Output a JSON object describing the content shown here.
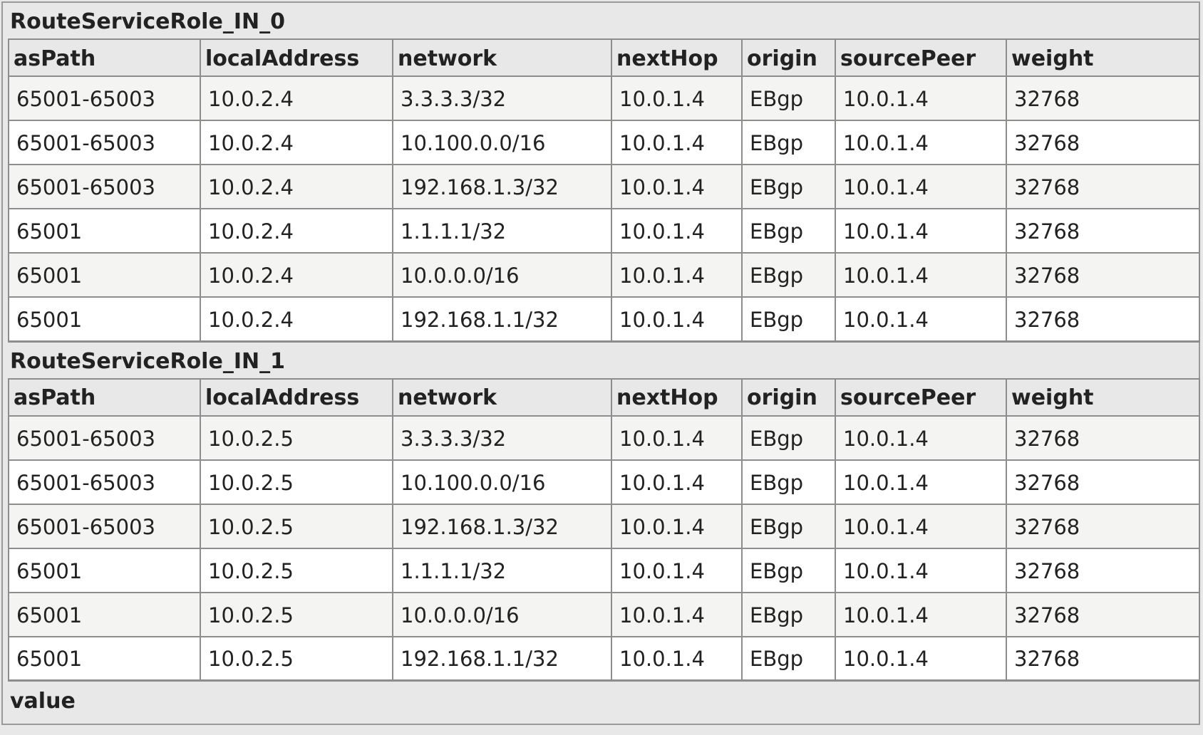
{
  "sections": [
    {
      "title": "RouteServiceRole_IN_0",
      "columns": [
        "asPath",
        "localAddress",
        "network",
        "nextHop",
        "origin",
        "sourcePeer",
        "weight"
      ],
      "rows": [
        [
          "65001-65003",
          "10.0.2.4",
          "3.3.3.3/32",
          "10.0.1.4",
          "EBgp",
          "10.0.1.4",
          "32768"
        ],
        [
          "65001-65003",
          "10.0.2.4",
          "10.100.0.0/16",
          "10.0.1.4",
          "EBgp",
          "10.0.1.4",
          "32768"
        ],
        [
          "65001-65003",
          "10.0.2.4",
          "192.168.1.3/32",
          "10.0.1.4",
          "EBgp",
          "10.0.1.4",
          "32768"
        ],
        [
          "65001",
          "10.0.2.4",
          "1.1.1.1/32",
          "10.0.1.4",
          "EBgp",
          "10.0.1.4",
          "32768"
        ],
        [
          "65001",
          "10.0.2.4",
          "10.0.0.0/16",
          "10.0.1.4",
          "EBgp",
          "10.0.1.4",
          "32768"
        ],
        [
          "65001",
          "10.0.2.4",
          "192.168.1.1/32",
          "10.0.1.4",
          "EBgp",
          "10.0.1.4",
          "32768"
        ]
      ]
    },
    {
      "title": "RouteServiceRole_IN_1",
      "columns": [
        "asPath",
        "localAddress",
        "network",
        "nextHop",
        "origin",
        "sourcePeer",
        "weight"
      ],
      "rows": [
        [
          "65001-65003",
          "10.0.2.5",
          "3.3.3.3/32",
          "10.0.1.4",
          "EBgp",
          "10.0.1.4",
          "32768"
        ],
        [
          "65001-65003",
          "10.0.2.5",
          "10.100.0.0/16",
          "10.0.1.4",
          "EBgp",
          "10.0.1.4",
          "32768"
        ],
        [
          "65001-65003",
          "10.0.2.5",
          "192.168.1.3/32",
          "10.0.1.4",
          "EBgp",
          "10.0.1.4",
          "32768"
        ],
        [
          "65001",
          "10.0.2.5",
          "1.1.1.1/32",
          "10.0.1.4",
          "EBgp",
          "10.0.1.4",
          "32768"
        ],
        [
          "65001",
          "10.0.2.5",
          "10.0.0.0/16",
          "10.0.1.4",
          "EBgp",
          "10.0.1.4",
          "32768"
        ],
        [
          "65001",
          "10.0.2.5",
          "192.168.1.1/32",
          "10.0.1.4",
          "EBgp",
          "10.0.1.4",
          "32768"
        ]
      ]
    }
  ],
  "footer": {
    "title": "value"
  }
}
